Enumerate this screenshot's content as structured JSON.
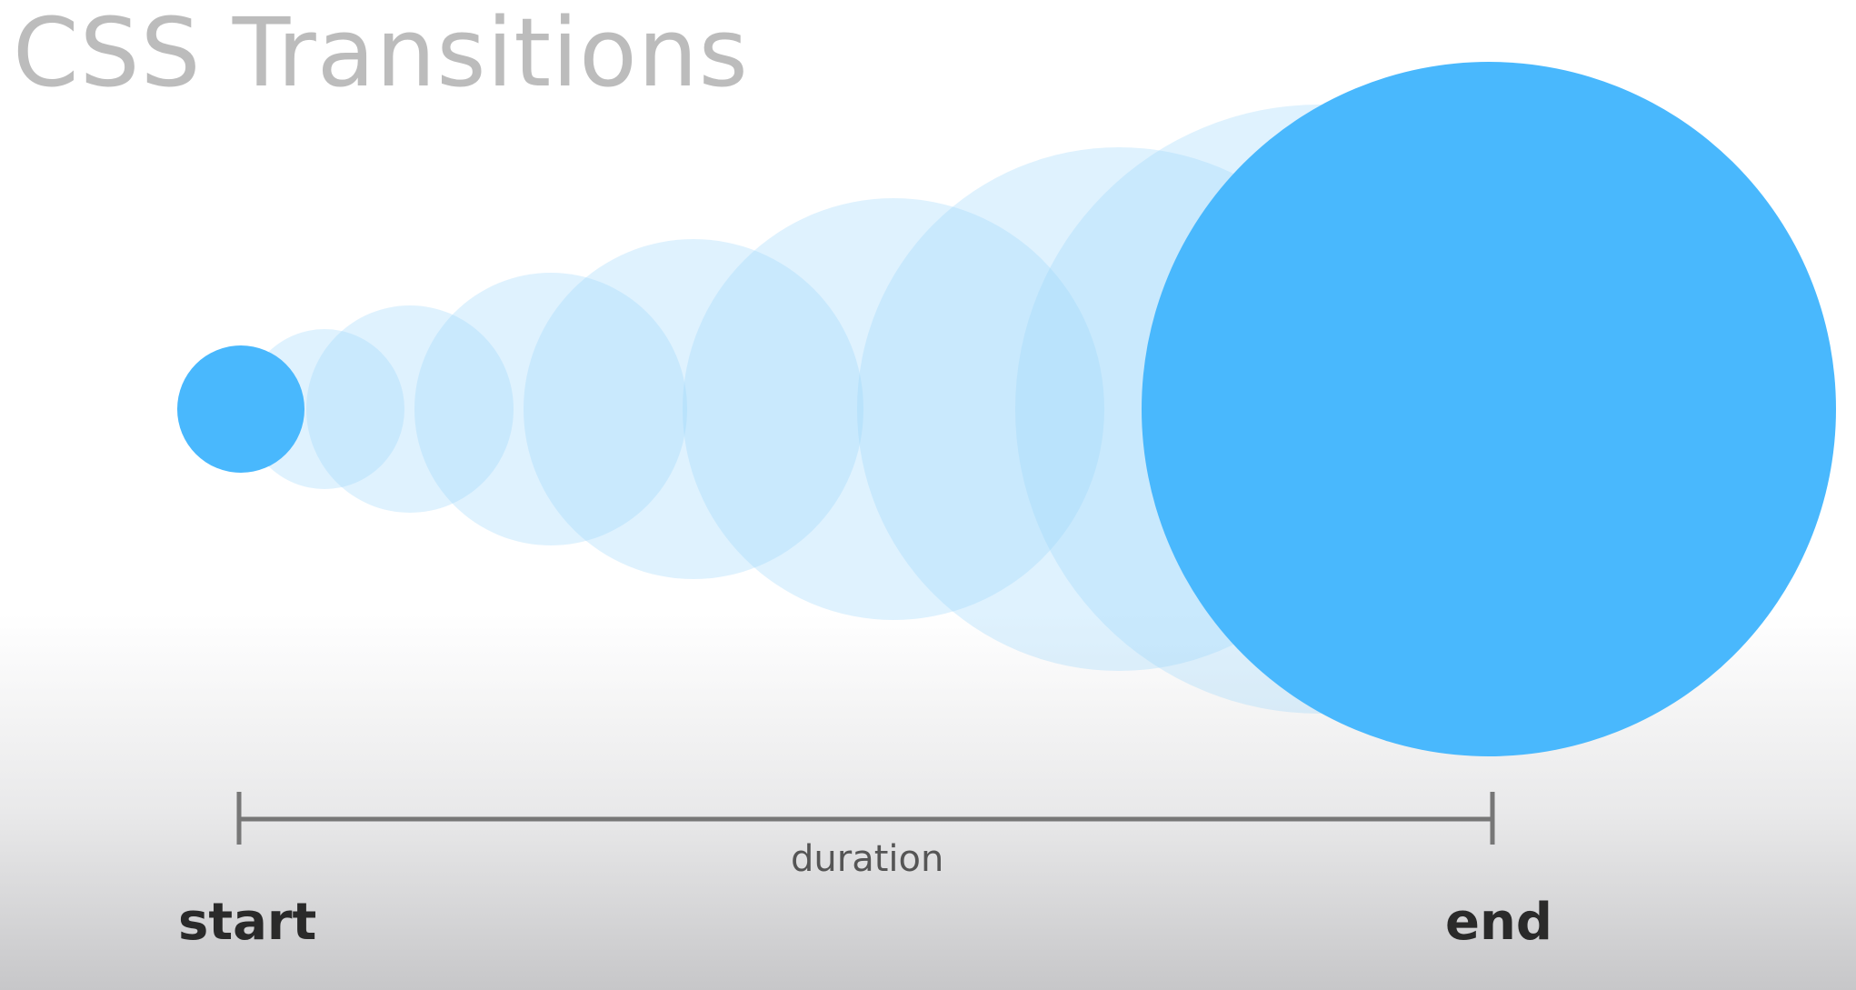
{
  "title": "CSS Transitions",
  "labels": {
    "start": "start",
    "end": "end",
    "duration": "duration"
  },
  "colors": {
    "circle_solid": "#49b8fd",
    "circle_ghost": "#9cd6fb",
    "timeline": "#777777",
    "title": "#bcbcbc"
  },
  "animation_steps": 9
}
